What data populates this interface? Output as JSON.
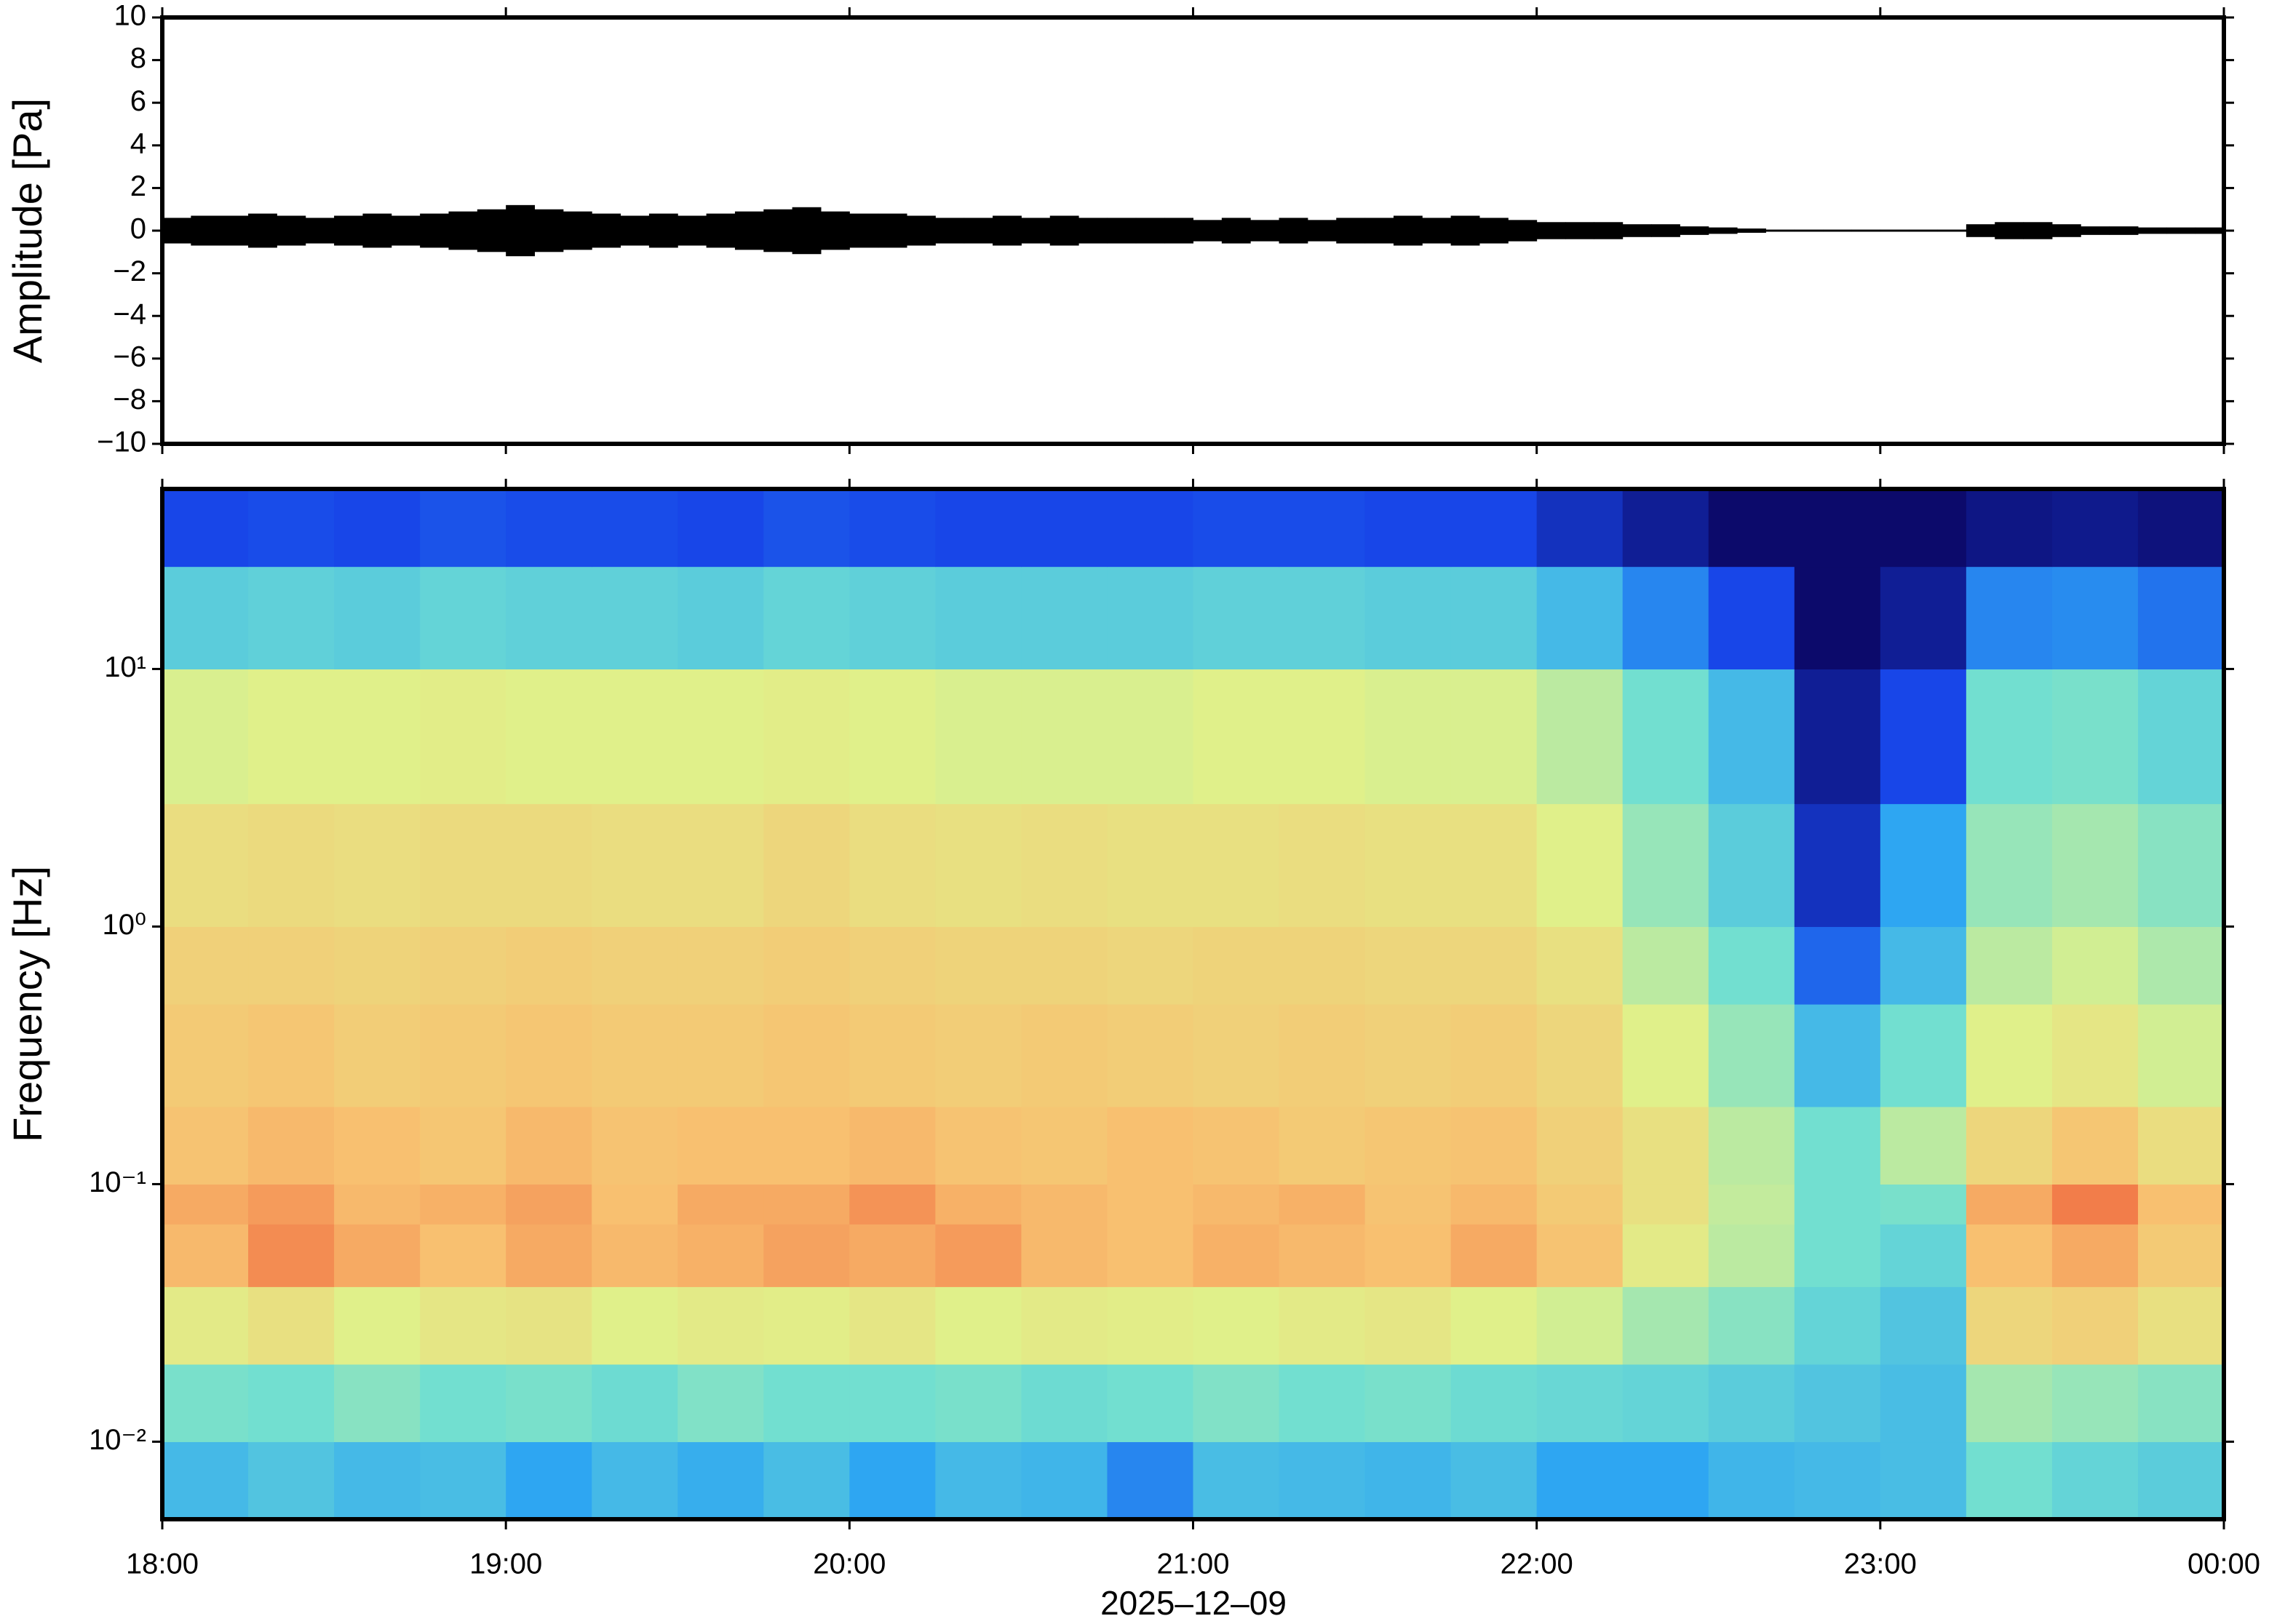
{
  "chart_data": [
    {
      "type": "waveform",
      "ylabel": "Amplitude [Pa]",
      "color": "#000000",
      "xlim": [
        0,
        360
      ],
      "ylim": [
        -10,
        10
      ],
      "yticks": [
        {
          "value": -10,
          "label": "−10"
        },
        {
          "value": -8,
          "label": "−8"
        },
        {
          "value": -6,
          "label": "−6"
        },
        {
          "value": -4,
          "label": "−4"
        },
        {
          "value": -2,
          "label": "−2"
        },
        0,
        2,
        4,
        6,
        8,
        10
      ],
      "x": [
        0,
        5,
        10,
        15,
        20,
        25,
        30,
        35,
        40,
        45,
        50,
        55,
        60,
        65,
        70,
        75,
        80,
        85,
        90,
        95,
        100,
        105,
        110,
        115,
        120,
        125,
        130,
        135,
        140,
        145,
        150,
        155,
        160,
        165,
        170,
        175,
        180,
        185,
        190,
        195,
        200,
        205,
        210,
        215,
        220,
        225,
        230,
        235,
        240,
        245,
        250,
        255,
        260,
        265,
        270,
        275,
        280,
        285,
        290,
        295,
        300,
        305,
        310,
        315,
        320,
        325,
        330,
        335,
        340,
        345,
        350,
        355
      ],
      "values": [
        0.6,
        0.7,
        0.7,
        0.8,
        0.7,
        0.6,
        0.7,
        0.8,
        0.7,
        0.8,
        0.9,
        1.0,
        1.2,
        1.0,
        0.9,
        0.8,
        0.7,
        0.8,
        0.7,
        0.8,
        0.9,
        1.0,
        1.1,
        0.9,
        0.8,
        0.8,
        0.7,
        0.6,
        0.6,
        0.7,
        0.6,
        0.7,
        0.6,
        0.6,
        0.6,
        0.6,
        0.5,
        0.6,
        0.5,
        0.6,
        0.5,
        0.6,
        0.6,
        0.7,
        0.6,
        0.7,
        0.6,
        0.5,
        0.4,
        0.4,
        0.4,
        0.3,
        0.3,
        0.2,
        0.15,
        0.1,
        0.05,
        0.05,
        0.05,
        0.05,
        0.05,
        0.05,
        0.05,
        0.3,
        0.4,
        0.4,
        0.3,
        0.2,
        0.2,
        0.15,
        0.15,
        0.15
      ]
    },
    {
      "type": "spectrogram",
      "ylabel": "Frequency [Hz]",
      "xlabel": "2025–12–09",
      "log_y": true,
      "xlim": [
        0,
        360
      ],
      "ylim": [
        0.005,
        50
      ],
      "xticks": [
        {
          "value": 0,
          "label": "18:00"
        },
        {
          "value": 60,
          "label": "19:00"
        },
        {
          "value": 120,
          "label": "20:00"
        },
        {
          "value": 180,
          "label": "21:00"
        },
        {
          "value": 240,
          "label": "22:00"
        },
        {
          "value": 300,
          "label": "23:00"
        },
        {
          "value": 360,
          "label": "00:00"
        }
      ],
      "yticks": [
        {
          "value": 0.01,
          "label": "10⁻²"
        },
        {
          "value": 0.1,
          "label": "10⁻¹"
        },
        {
          "value": 1,
          "label": "10⁰"
        },
        {
          "value": 10,
          "label": "10¹"
        }
      ],
      "x_bins": [
        0,
        15,
        30,
        45,
        60,
        75,
        90,
        105,
        120,
        135,
        150,
        165,
        180,
        195,
        210,
        225,
        240,
        255,
        270,
        285,
        300,
        315,
        330,
        345,
        360
      ],
      "freq_bins": [
        0.005,
        0.01,
        0.02,
        0.04,
        0.07,
        0.1,
        0.2,
        0.5,
        1,
        3,
        10,
        25,
        50
      ],
      "zlim": [
        0,
        9
      ],
      "colormap": [
        "#0c0a6b",
        "#1846e8",
        "#2ea6f2",
        "#72dfd0",
        "#e0f08a",
        "#f8c070",
        "#ee5030"
      ],
      "z": [
        [
          3.5,
          3.8,
          3.5,
          3.6,
          3.0,
          3.5,
          3.2,
          3.6,
          3.0,
          3.5,
          3.4,
          2.5,
          3.6,
          3.5,
          3.4,
          3.6,
          3.0,
          3.0,
          3.4,
          3.5,
          3.6,
          4.5,
          4.2,
          4.0
        ],
        [
          4.6,
          4.5,
          4.8,
          4.5,
          4.6,
          4.4,
          4.7,
          4.5,
          4.5,
          4.6,
          4.4,
          4.5,
          4.7,
          4.5,
          4.6,
          4.4,
          4.3,
          4.2,
          4.0,
          3.8,
          3.6,
          5.2,
          5.0,
          4.8
        ],
        [
          6.2,
          6.5,
          6.0,
          6.3,
          6.4,
          6.0,
          6.2,
          6.1,
          6.3,
          6.0,
          6.2,
          6.1,
          6.0,
          6.2,
          6.3,
          6.0,
          5.8,
          5.2,
          4.8,
          4.2,
          3.8,
          6.8,
          7.0,
          6.5
        ],
        [
          7.6,
          8.2,
          7.8,
          7.5,
          7.8,
          7.6,
          7.7,
          7.9,
          7.8,
          8.0,
          7.6,
          7.5,
          7.7,
          7.6,
          7.5,
          7.8,
          7.4,
          6.2,
          5.5,
          4.5,
          4.2,
          7.5,
          7.8,
          7.2
        ],
        [
          7.8,
          8.0,
          7.6,
          7.7,
          7.9,
          7.5,
          7.8,
          7.8,
          8.1,
          7.7,
          7.6,
          7.5,
          7.6,
          7.7,
          7.4,
          7.6,
          7.2,
          6.5,
          5.6,
          4.5,
          4.6,
          7.8,
          8.4,
          7.5
        ],
        [
          7.4,
          7.6,
          7.5,
          7.3,
          7.6,
          7.4,
          7.5,
          7.5,
          7.6,
          7.4,
          7.3,
          7.5,
          7.4,
          7.2,
          7.3,
          7.4,
          7.0,
          6.5,
          5.5,
          4.5,
          5.5,
          6.8,
          7.3,
          6.6
        ],
        [
          7.2,
          7.3,
          7.1,
          7.2,
          7.3,
          7.2,
          7.2,
          7.3,
          7.2,
          7.1,
          7.2,
          7.1,
          7.0,
          7.1,
          7.0,
          7.1,
          6.8,
          6.0,
          5.0,
          3.5,
          4.5,
          6.0,
          6.3,
          5.8
        ],
        [
          7.0,
          7.0,
          6.9,
          7.0,
          7.1,
          7.0,
          7.0,
          7.1,
          7.0,
          6.9,
          6.9,
          6.8,
          6.9,
          6.9,
          6.8,
          6.8,
          6.5,
          5.5,
          4.5,
          2.0,
          3.5,
          5.5,
          5.8,
          5.3
        ],
        [
          6.6,
          6.7,
          6.6,
          6.7,
          6.7,
          6.6,
          6.6,
          6.8,
          6.6,
          6.5,
          6.6,
          6.5,
          6.5,
          6.6,
          6.5,
          6.5,
          6.0,
          5.0,
          4.0,
          1.0,
          3.0,
          5.0,
          5.2,
          4.8
        ],
        [
          5.9,
          6.0,
          6.0,
          6.1,
          6.0,
          6.0,
          6.0,
          6.1,
          6.0,
          5.9,
          5.9,
          5.9,
          6.0,
          6.0,
          5.9,
          5.9,
          5.5,
          4.5,
          3.5,
          0.5,
          1.5,
          4.5,
          4.6,
          4.2
        ],
        [
          4.0,
          4.1,
          4.0,
          4.2,
          4.1,
          4.1,
          4.0,
          4.2,
          4.1,
          4.0,
          4.0,
          4.0,
          4.1,
          4.1,
          4.0,
          4.0,
          3.5,
          2.5,
          1.5,
          0.0,
          0.5,
          2.5,
          2.6,
          2.2
        ],
        [
          1.5,
          1.6,
          1.5,
          1.7,
          1.6,
          1.6,
          1.5,
          1.7,
          1.6,
          1.5,
          1.5,
          1.5,
          1.6,
          1.6,
          1.5,
          1.5,
          1.0,
          0.5,
          0.0,
          0.0,
          0.0,
          0.3,
          0.4,
          0.2
        ]
      ]
    }
  ]
}
